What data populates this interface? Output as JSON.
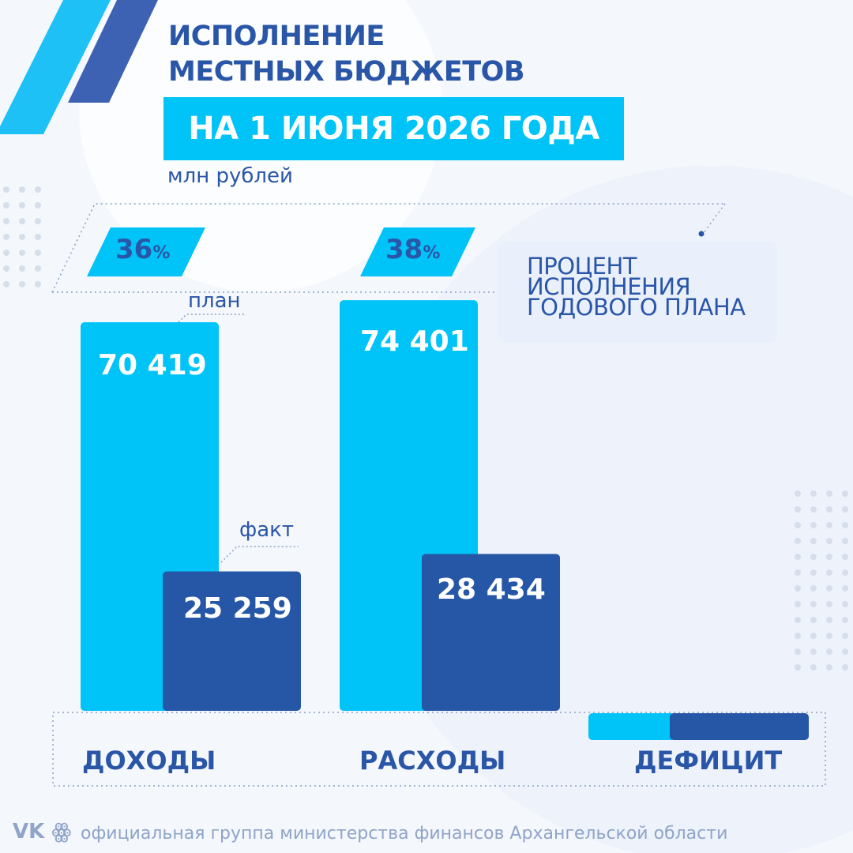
{
  "header": {
    "title": "ИСПОЛНЕНИЕ\nМЕСТНЫХ БЮДЖЕТОВ",
    "date_banner": "НА 1 ИЮНЯ 2026 ГОДА",
    "unit": "млн рублей"
  },
  "legend": {
    "text": "ПРОЦЕНТ\nИСПОЛНЕНИЯ\nГОДОВОГО ПЛАНА"
  },
  "chart_data": {
    "type": "bar",
    "categories": [
      "ДОХОДЫ",
      "РАСХОДЫ",
      "ДЕФИЦИТ"
    ],
    "series": [
      {
        "name": "план",
        "values": [
          70419,
          74401,
          null
        ]
      },
      {
        "name": "факт",
        "values": [
          25259,
          28434,
          null
        ]
      }
    ],
    "value_labels": {
      "plan": [
        "70 419",
        "74 401"
      ],
      "fact": [
        "25 259",
        "28 434"
      ]
    },
    "percentages": [
      {
        "value": "36",
        "sign": "%"
      },
      {
        "value": "38",
        "sign": "%"
      }
    ],
    "annotations": {
      "plan": "план",
      "fact": "факт"
    },
    "ylabel": "млн рублей",
    "colors": {
      "plan": "#00c3f8",
      "fact": "#2657a6",
      "text": "#2a56a8"
    },
    "deficit_shown_as": "empty bar pair without value"
  },
  "footer": {
    "social_icon": "vk-ok-icon",
    "text": "официальная группа министерства финансов Архангельской области"
  }
}
